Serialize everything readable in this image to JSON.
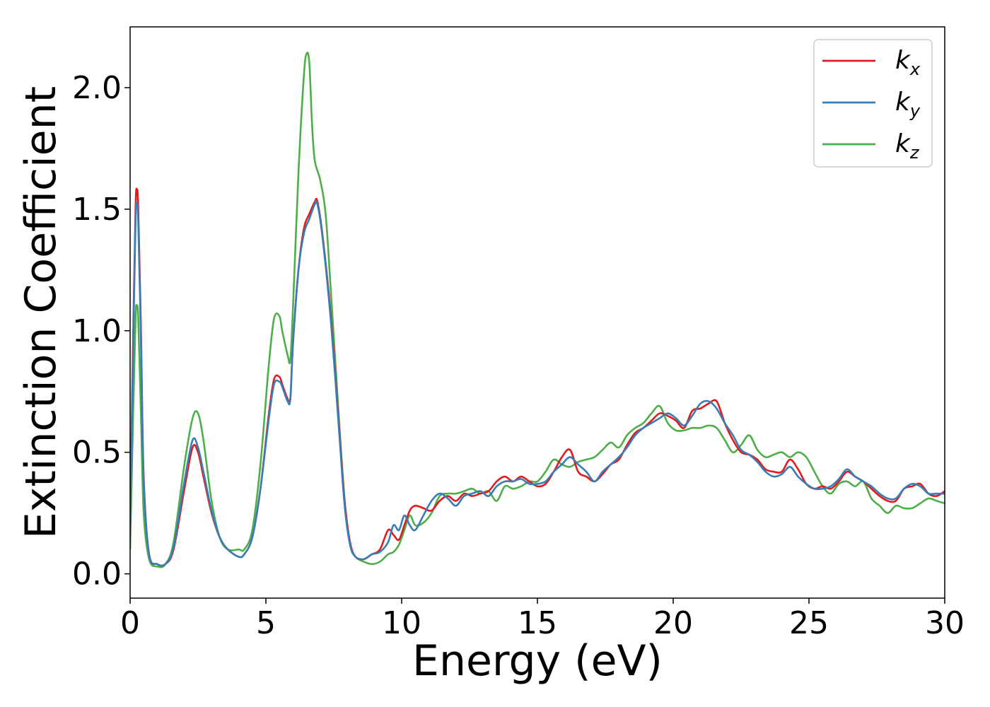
{
  "chart_data": {
    "type": "line",
    "title": "",
    "xlabel": "Energy (eV)",
    "ylabel": "Extinction Coefficient",
    "xlim": [
      0,
      30
    ],
    "ylim": [
      -0.1,
      2.25
    ],
    "xticks": [
      0,
      5,
      10,
      15,
      20,
      25,
      30
    ],
    "xtick_labels": [
      "0",
      "5",
      "10",
      "15",
      "20",
      "25",
      "30"
    ],
    "yticks": [
      0.0,
      0.5,
      1.0,
      1.5,
      2.0
    ],
    "ytick_labels": [
      "0.0",
      "0.5",
      "1.0",
      "1.5",
      "2.0"
    ],
    "grid": false,
    "legend_position": "top-right",
    "series": [
      {
        "name": "k_x",
        "label_main": "k",
        "label_sub": "x",
        "color": "#e41a1c",
        "x": [
          0,
          0.1,
          0.2,
          0.25,
          0.3,
          0.4,
          0.5,
          0.7,
          1.0,
          1.3,
          1.6,
          2.0,
          2.3,
          2.5,
          2.7,
          3.0,
          3.3,
          3.6,
          4.0,
          4.2,
          4.5,
          4.8,
          5.1,
          5.3,
          5.5,
          5.6,
          5.8,
          5.9,
          6.0,
          6.2,
          6.4,
          6.6,
          6.8,
          6.9,
          7.1,
          7.4,
          7.7,
          7.9,
          8.1,
          8.3,
          8.6,
          8.9,
          9.2,
          9.5,
          9.7,
          9.9,
          10.1,
          10.3,
          10.5,
          10.8,
          11.1,
          11.4,
          11.7,
          12.0,
          12.3,
          12.6,
          12.9,
          13.2,
          13.5,
          13.8,
          14.1,
          14.4,
          14.7,
          15.0,
          15.3,
          15.6,
          15.9,
          16.2,
          16.5,
          16.8,
          17.1,
          17.4,
          17.7,
          18.0,
          18.3,
          18.6,
          18.9,
          19.2,
          19.5,
          19.8,
          20.1,
          20.4,
          20.7,
          21.0,
          21.3,
          21.6,
          21.9,
          22.2,
          22.5,
          22.8,
          23.1,
          23.4,
          23.7,
          24.0,
          24.3,
          24.6,
          24.9,
          25.2,
          25.5,
          25.8,
          26.1,
          26.4,
          26.7,
          27.0,
          27.3,
          27.6,
          27.9,
          28.2,
          28.5,
          28.8,
          29.1,
          29.4,
          29.7,
          30.0
        ],
        "y": [
          0.2,
          0.9,
          1.5,
          1.58,
          1.5,
          1.0,
          0.4,
          0.08,
          0.04,
          0.04,
          0.1,
          0.35,
          0.52,
          0.5,
          0.4,
          0.25,
          0.15,
          0.1,
          0.07,
          0.08,
          0.15,
          0.35,
          0.65,
          0.8,
          0.81,
          0.78,
          0.72,
          0.72,
          0.95,
          1.25,
          1.42,
          1.48,
          1.53,
          1.53,
          1.38,
          1.05,
          0.6,
          0.3,
          0.13,
          0.07,
          0.06,
          0.08,
          0.1,
          0.18,
          0.16,
          0.14,
          0.2,
          0.26,
          0.28,
          0.27,
          0.26,
          0.3,
          0.32,
          0.3,
          0.33,
          0.32,
          0.33,
          0.34,
          0.38,
          0.4,
          0.38,
          0.4,
          0.38,
          0.36,
          0.37,
          0.42,
          0.48,
          0.51,
          0.42,
          0.4,
          0.38,
          0.41,
          0.45,
          0.47,
          0.53,
          0.58,
          0.6,
          0.63,
          0.66,
          0.65,
          0.63,
          0.6,
          0.67,
          0.68,
          0.7,
          0.71,
          0.62,
          0.55,
          0.5,
          0.49,
          0.47,
          0.43,
          0.42,
          0.42,
          0.47,
          0.43,
          0.37,
          0.35,
          0.36,
          0.35,
          0.38,
          0.42,
          0.4,
          0.38,
          0.35,
          0.32,
          0.3,
          0.3,
          0.35,
          0.36,
          0.37,
          0.33,
          0.32,
          0.34
        ]
      },
      {
        "name": "k_y",
        "label_main": "k",
        "label_sub": "y",
        "color": "#377eb8",
        "x": [
          0,
          0.1,
          0.2,
          0.25,
          0.3,
          0.4,
          0.5,
          0.7,
          1.0,
          1.3,
          1.6,
          2.0,
          2.3,
          2.5,
          2.7,
          3.0,
          3.3,
          3.6,
          4.0,
          4.2,
          4.5,
          4.8,
          5.1,
          5.3,
          5.5,
          5.6,
          5.8,
          5.9,
          6.0,
          6.2,
          6.4,
          6.6,
          6.8,
          6.9,
          7.1,
          7.4,
          7.7,
          7.9,
          8.1,
          8.3,
          8.6,
          8.9,
          9.2,
          9.5,
          9.7,
          9.9,
          10.1,
          10.3,
          10.5,
          10.8,
          11.1,
          11.4,
          11.7,
          12.0,
          12.3,
          12.6,
          12.9,
          13.2,
          13.5,
          13.8,
          14.1,
          14.4,
          14.7,
          15.0,
          15.3,
          15.6,
          15.9,
          16.2,
          16.5,
          16.8,
          17.1,
          17.4,
          17.7,
          18.0,
          18.3,
          18.6,
          18.9,
          19.2,
          19.5,
          19.8,
          20.1,
          20.4,
          20.7,
          21.0,
          21.3,
          21.6,
          21.9,
          22.2,
          22.5,
          22.8,
          23.1,
          23.4,
          23.7,
          24.0,
          24.3,
          24.6,
          24.9,
          25.2,
          25.5,
          25.8,
          26.1,
          26.4,
          26.7,
          27.0,
          27.3,
          27.6,
          27.9,
          28.2,
          28.5,
          28.8,
          29.1,
          29.4,
          29.7,
          30.0
        ],
        "y": [
          0.2,
          0.85,
          1.45,
          1.52,
          1.45,
          0.95,
          0.38,
          0.08,
          0.04,
          0.04,
          0.11,
          0.38,
          0.55,
          0.52,
          0.42,
          0.26,
          0.15,
          0.1,
          0.07,
          0.08,
          0.15,
          0.35,
          0.63,
          0.78,
          0.79,
          0.77,
          0.71,
          0.72,
          0.95,
          1.25,
          1.4,
          1.46,
          1.52,
          1.52,
          1.37,
          1.03,
          0.58,
          0.28,
          0.12,
          0.07,
          0.06,
          0.08,
          0.09,
          0.13,
          0.2,
          0.18,
          0.24,
          0.2,
          0.18,
          0.24,
          0.3,
          0.33,
          0.31,
          0.28,
          0.32,
          0.33,
          0.34,
          0.32,
          0.36,
          0.38,
          0.38,
          0.39,
          0.37,
          0.37,
          0.38,
          0.42,
          0.45,
          0.48,
          0.45,
          0.42,
          0.38,
          0.42,
          0.45,
          0.48,
          0.52,
          0.57,
          0.6,
          0.62,
          0.64,
          0.66,
          0.64,
          0.61,
          0.65,
          0.7,
          0.71,
          0.68,
          0.62,
          0.57,
          0.51,
          0.49,
          0.46,
          0.42,
          0.4,
          0.41,
          0.44,
          0.4,
          0.37,
          0.35,
          0.35,
          0.36,
          0.39,
          0.43,
          0.4,
          0.38,
          0.36,
          0.33,
          0.31,
          0.31,
          0.35,
          0.37,
          0.36,
          0.33,
          0.33,
          0.33
        ]
      },
      {
        "name": "k_z",
        "label_main": "k",
        "label_sub": "z",
        "color": "#4daf4a",
        "x": [
          0,
          0.1,
          0.2,
          0.25,
          0.3,
          0.4,
          0.5,
          0.7,
          1.0,
          1.3,
          1.6,
          2.0,
          2.3,
          2.5,
          2.7,
          3.0,
          3.3,
          3.6,
          4.0,
          4.2,
          4.5,
          4.8,
          5.1,
          5.3,
          5.5,
          5.6,
          5.8,
          5.9,
          6.0,
          6.2,
          6.4,
          6.5,
          6.6,
          6.7,
          6.8,
          7.0,
          7.2,
          7.4,
          7.7,
          7.9,
          8.1,
          8.3,
          8.6,
          8.9,
          9.2,
          9.5,
          9.7,
          9.9,
          10.1,
          10.3,
          10.5,
          10.8,
          11.1,
          11.4,
          11.7,
          12.0,
          12.3,
          12.6,
          12.9,
          13.2,
          13.5,
          13.8,
          14.1,
          14.4,
          14.7,
          15.0,
          15.3,
          15.6,
          15.9,
          16.2,
          16.5,
          16.8,
          17.1,
          17.4,
          17.7,
          18.0,
          18.3,
          18.6,
          18.9,
          19.2,
          19.5,
          19.8,
          20.1,
          20.4,
          20.7,
          21.0,
          21.3,
          21.6,
          21.9,
          22.2,
          22.5,
          22.8,
          23.1,
          23.4,
          23.7,
          24.0,
          24.3,
          24.6,
          24.9,
          25.2,
          25.5,
          25.8,
          26.1,
          26.4,
          26.7,
          27.0,
          27.3,
          27.6,
          27.9,
          28.2,
          28.5,
          28.8,
          29.1,
          29.4,
          29.7,
          30.0
        ],
        "y": [
          0.1,
          0.6,
          1.05,
          1.1,
          1.05,
          0.65,
          0.25,
          0.06,
          0.03,
          0.04,
          0.13,
          0.45,
          0.64,
          0.66,
          0.55,
          0.3,
          0.15,
          0.1,
          0.1,
          0.1,
          0.18,
          0.45,
          0.85,
          1.05,
          1.06,
          1.0,
          0.9,
          0.88,
          1.1,
          1.65,
          2.05,
          2.14,
          2.1,
          1.85,
          1.7,
          1.62,
          1.48,
          1.15,
          0.62,
          0.3,
          0.12,
          0.07,
          0.05,
          0.04,
          0.05,
          0.08,
          0.09,
          0.12,
          0.18,
          0.24,
          0.2,
          0.21,
          0.25,
          0.32,
          0.33,
          0.33,
          0.34,
          0.35,
          0.33,
          0.34,
          0.3,
          0.36,
          0.35,
          0.36,
          0.38,
          0.38,
          0.42,
          0.47,
          0.45,
          0.44,
          0.46,
          0.47,
          0.48,
          0.51,
          0.54,
          0.52,
          0.57,
          0.6,
          0.62,
          0.66,
          0.69,
          0.62,
          0.59,
          0.59,
          0.6,
          0.6,
          0.61,
          0.6,
          0.55,
          0.5,
          0.53,
          0.57,
          0.51,
          0.48,
          0.49,
          0.5,
          0.48,
          0.5,
          0.48,
          0.42,
          0.36,
          0.33,
          0.37,
          0.38,
          0.36,
          0.38,
          0.31,
          0.28,
          0.25,
          0.28,
          0.27,
          0.27,
          0.29,
          0.31,
          0.3,
          0.29
        ]
      }
    ]
  }
}
